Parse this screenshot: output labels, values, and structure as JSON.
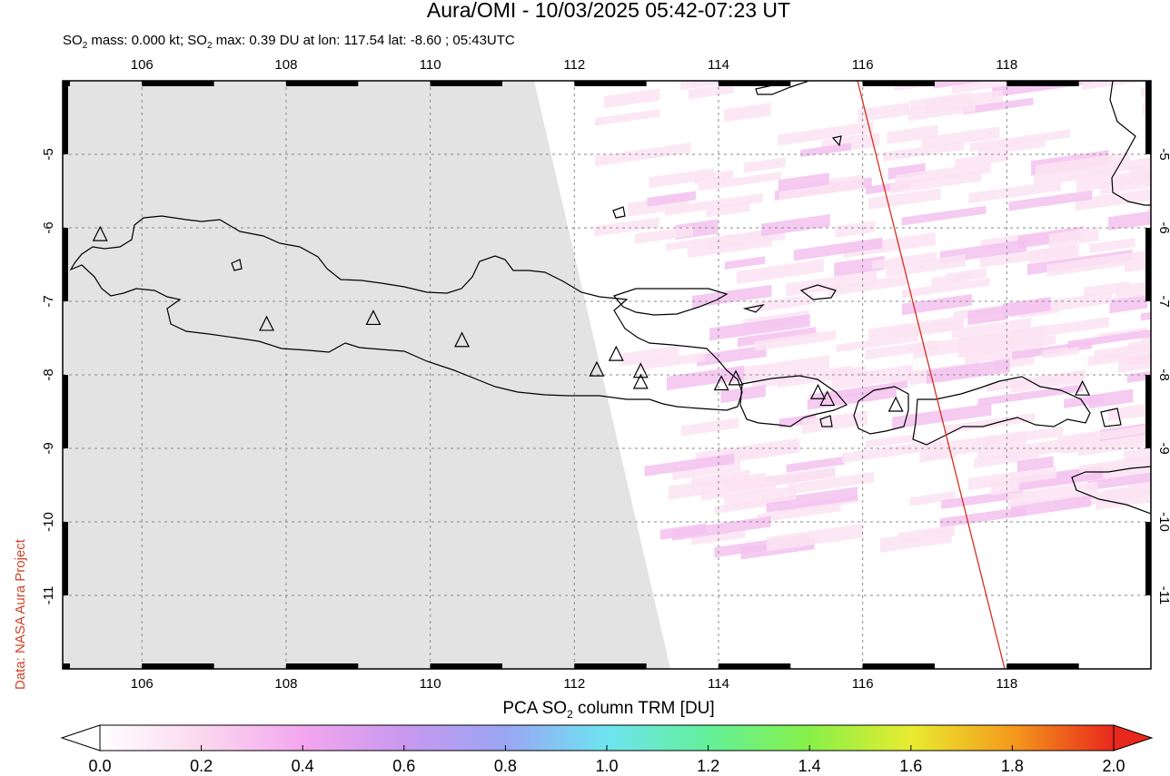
{
  "header": {
    "title": "Aura/OMI - 10/03/2025 05:42-07:23 UT",
    "subtitle_parts": [
      "SO",
      "2",
      " mass: 0.000 kt; SO",
      "2",
      " max: 0.39 DU at lon: 117.54 lat: -8.60 ; 05:43UTC"
    ]
  },
  "credit": "Data: NASA Aura Project",
  "map": {
    "lon_range": [
      104.9,
      120.0
    ],
    "lat_range": [
      -12.0,
      -4.0
    ],
    "lon_ticks": [
      "106",
      "108",
      "110",
      "112",
      "114",
      "116",
      "118"
    ],
    "lon_tick_values": [
      106,
      108,
      110,
      112,
      114,
      116,
      118
    ],
    "lat_ticks": [
      "-5",
      "-6",
      "-7",
      "-8",
      "-9",
      "-10",
      "-11"
    ],
    "lat_tick_values": [
      -5,
      -6,
      -7,
      -8,
      -9,
      -10,
      -11
    ],
    "no_data_color": "#e3e3e3",
    "coastline_color": "#000000",
    "orbit_line_color": "#d42a1a",
    "gridlines": "dashed",
    "volcanoes": [
      {
        "lon": 105.42,
        "lat": -6.1
      },
      {
        "lon": 107.73,
        "lat": -7.32
      },
      {
        "lon": 109.21,
        "lat": -7.24
      },
      {
        "lon": 110.44,
        "lat": -7.54
      },
      {
        "lon": 112.31,
        "lat": -7.94
      },
      {
        "lon": 112.58,
        "lat": -7.73
      },
      {
        "lon": 112.92,
        "lat": -7.96
      },
      {
        "lon": 112.92,
        "lat": -8.11
      },
      {
        "lon": 114.04,
        "lat": -8.13
      },
      {
        "lon": 114.24,
        "lat": -8.06
      },
      {
        "lon": 115.38,
        "lat": -8.25
      },
      {
        "lon": 115.51,
        "lat": -8.34
      },
      {
        "lon": 116.46,
        "lat": -8.42
      },
      {
        "lon": 119.05,
        "lat": -8.2
      }
    ]
  },
  "colorbar": {
    "title_parts": [
      "PCA SO",
      "2",
      " column TRM [DU]"
    ],
    "tick_labels": [
      "0.0",
      "0.2",
      "0.4",
      "0.6",
      "0.8",
      "1.0",
      "1.2",
      "1.4",
      "1.6",
      "1.8",
      "2.0"
    ],
    "range": [
      0.0,
      2.0
    ],
    "colors": [
      "#ffffff",
      "#fbd8ee",
      "#f3a6ee",
      "#c898ee",
      "#9aa6f4",
      "#6ee4f0",
      "#62f09a",
      "#88f048",
      "#e8ec30",
      "#f49a1c",
      "#e8281c"
    ]
  }
}
